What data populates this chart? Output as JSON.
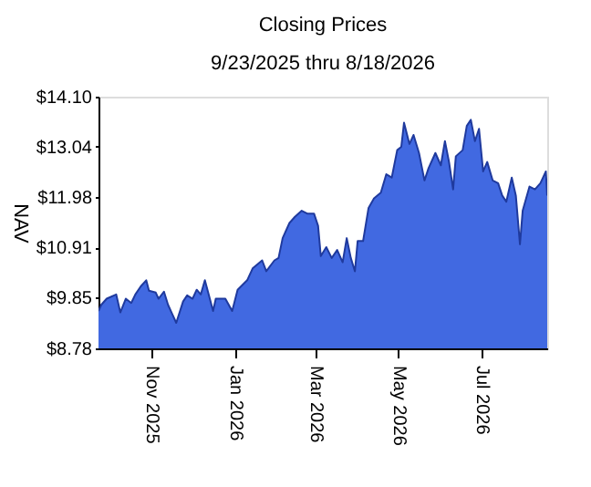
{
  "chart_data": {
    "type": "area",
    "title": "Closing Prices",
    "subtitle": "9/23/2025 thru 8/18/2026",
    "ylabel": "NAV",
    "x": [
      "2025-09-23",
      "2025-09-25",
      "2025-09-29",
      "2025-10-06",
      "2025-10-09",
      "2025-10-13",
      "2025-10-17",
      "2025-10-20",
      "2025-10-24",
      "2025-10-28",
      "2025-10-30",
      "2025-11-04",
      "2025-11-06",
      "2025-11-10",
      "2025-11-13",
      "2025-11-16",
      "2025-11-19",
      "2025-11-24",
      "2025-11-27",
      "2025-12-01",
      "2025-12-04",
      "2025-12-07",
      "2025-12-10",
      "2025-12-13",
      "2025-12-16",
      "2025-12-18",
      "2025-12-25",
      "2025-12-30",
      "2026-01-03",
      "2026-01-10",
      "2026-01-14",
      "2026-01-21",
      "2026-01-24",
      "2026-01-30",
      "2026-02-02",
      "2026-02-05",
      "2026-02-10",
      "2026-02-14",
      "2026-02-19",
      "2026-02-23",
      "2026-02-28",
      "2026-03-03",
      "2026-03-05",
      "2026-03-09",
      "2026-03-13",
      "2026-03-17",
      "2026-03-21",
      "2026-03-24",
      "2026-03-27",
      "2026-03-30",
      "2026-04-01",
      "2026-04-05",
      "2026-04-09",
      "2026-04-13",
      "2026-04-18",
      "2026-04-22",
      "2026-04-26",
      "2026-04-30",
      "2026-05-03",
      "2026-05-05",
      "2026-05-09",
      "2026-05-12",
      "2026-05-16",
      "2026-05-20",
      "2026-05-23",
      "2026-05-28",
      "2026-06-01",
      "2026-06-04",
      "2026-06-07",
      "2026-06-10",
      "2026-06-12",
      "2026-06-17",
      "2026-06-20",
      "2026-06-23",
      "2026-06-26",
      "2026-06-29",
      "2026-07-02",
      "2026-07-05",
      "2026-07-09",
      "2026-07-13",
      "2026-07-16",
      "2026-07-19",
      "2026-07-23",
      "2026-07-26",
      "2026-07-29",
      "2026-07-31",
      "2026-08-05",
      "2026-08-09",
      "2026-08-13",
      "2026-08-17",
      "2026-08-18"
    ],
    "series": [
      {
        "color": "#4169e1",
        "values": [
          9.57,
          9.7,
          9.83,
          9.92,
          9.54,
          9.83,
          9.74,
          9.92,
          10.09,
          10.22,
          10.0,
          9.96,
          9.83,
          9.98,
          9.7,
          9.51,
          9.32,
          9.77,
          9.9,
          9.83,
          10.02,
          9.92,
          10.22,
          9.9,
          9.57,
          9.83,
          9.83,
          9.57,
          10.02,
          10.22,
          10.47,
          10.64,
          10.41,
          10.64,
          10.69,
          11.11,
          11.43,
          11.56,
          11.69,
          11.63,
          11.63,
          11.37,
          10.73,
          10.92,
          10.69,
          10.86,
          10.6,
          11.11,
          10.69,
          10.41,
          11.05,
          11.05,
          11.75,
          11.95,
          12.07,
          12.46,
          12.39,
          12.97,
          13.04,
          13.55,
          13.1,
          13.29,
          12.91,
          12.33,
          12.59,
          12.91,
          12.65,
          13.16,
          12.72,
          12.14,
          12.84,
          12.97,
          13.48,
          13.61,
          13.16,
          13.42,
          12.52,
          12.72,
          12.33,
          12.27,
          12.01,
          11.88,
          12.39,
          12.01,
          10.98,
          11.69,
          12.2,
          12.14,
          12.27,
          12.52,
          12.01
        ]
      }
    ],
    "xlim": [
      "2025-09-23",
      "2026-08-18"
    ],
    "xticks": [
      {
        "value": "2025-11-01",
        "label": "Nov 2025"
      },
      {
        "value": "2026-01-01",
        "label": "Jan 2026"
      },
      {
        "value": "2026-03-01",
        "label": "Mar 2026"
      },
      {
        "value": "2026-05-01",
        "label": "May 2026"
      },
      {
        "value": "2026-07-01",
        "label": "Jul 2026"
      }
    ],
    "ylim": [
      8.78,
      14.1
    ],
    "yticks": [
      {
        "value": 8.78,
        "label": "$8.78"
      },
      {
        "value": 9.85,
        "label": "$9.85"
      },
      {
        "value": 10.91,
        "label": "$10.91"
      },
      {
        "value": 11.98,
        "label": "$11.98"
      },
      {
        "value": 13.04,
        "label": "$13.04"
      },
      {
        "value": 14.1,
        "label": "$14.10"
      }
    ],
    "grid": false
  }
}
